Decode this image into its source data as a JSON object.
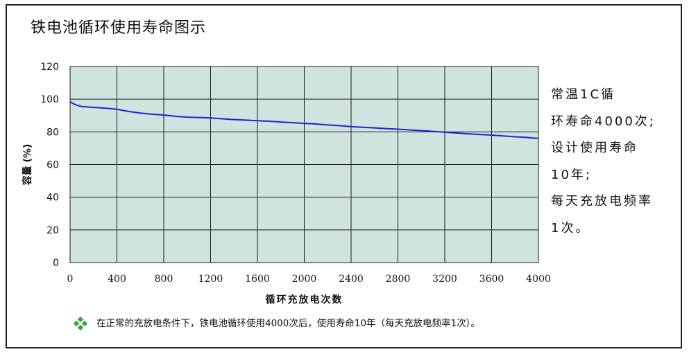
{
  "title": "铁电池循环使用寿命图示",
  "side_note": {
    "lines": [
      "常温1C循",
      "环寿命4000次;",
      "设计使用寿命",
      "10年;",
      "每天充放电频率",
      "1次。"
    ]
  },
  "footnote": {
    "icon": "diamond-cluster-icon",
    "text": "在正常的充放电条件下，铁电池循环使用4000次后，使用寿命10年（每天充放电频率1次）。"
  },
  "colors": {
    "plot_background": "#cfe3df",
    "line": "#2020d8",
    "grid": "#1a1a1a",
    "bullet": "#3aa540"
  },
  "chart_data": {
    "type": "line",
    "title": "",
    "xlabel": "循环充放电次数",
    "ylabel": "容量 (%)",
    "xlim": [
      0,
      4000
    ],
    "ylim": [
      0,
      120
    ],
    "xticks": [
      0,
      400,
      800,
      1200,
      1600,
      2000,
      2400,
      2800,
      3200,
      3600,
      4000
    ],
    "yticks": [
      0,
      20,
      40,
      60,
      80,
      100,
      120
    ],
    "grid": true,
    "series": [
      {
        "x": [
          0,
          20,
          50,
          100,
          200,
          300,
          400,
          500,
          600,
          700,
          800,
          900,
          1000,
          1100,
          1200,
          1300,
          1400,
          1500,
          1600,
          1700,
          1800,
          1900,
          2000,
          2100,
          2200,
          2300,
          2400,
          2500,
          2600,
          2700,
          2800,
          2900,
          3000,
          3100,
          3200,
          3300,
          3400,
          3500,
          3600,
          3700,
          3800,
          3900,
          3950,
          4000
        ],
        "y": [
          98.5,
          97.5,
          96.5,
          95.5,
          95.0,
          94.5,
          93.8,
          92.5,
          91.5,
          90.8,
          90.3,
          89.5,
          89.0,
          88.8,
          88.5,
          88.0,
          87.5,
          87.2,
          86.8,
          86.5,
          86.0,
          85.6,
          85.2,
          84.8,
          84.2,
          83.8,
          83.2,
          82.8,
          82.4,
          82.0,
          81.6,
          81.2,
          80.8,
          80.3,
          79.8,
          79.3,
          78.8,
          78.4,
          78.0,
          77.5,
          77.0,
          76.6,
          76.2,
          76.0
        ]
      }
    ]
  }
}
